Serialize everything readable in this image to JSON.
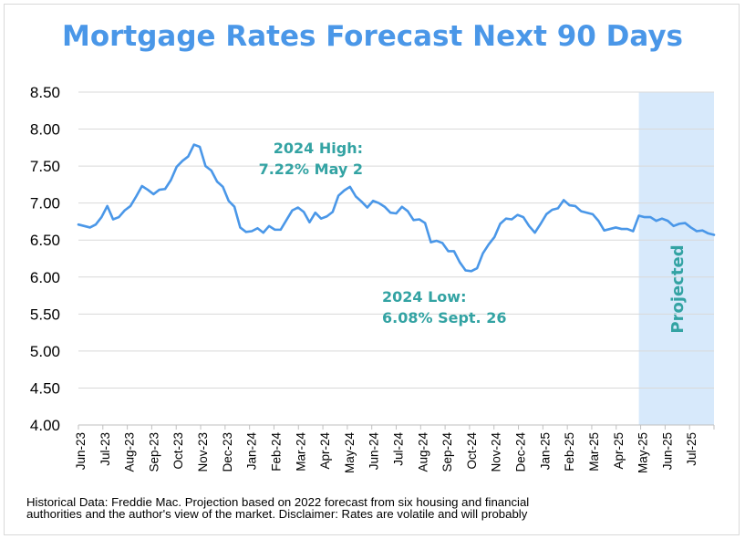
{
  "chart_data": {
    "type": "line",
    "title": "Mortgage Rates Forecast Next 90 Days",
    "xlabel": "",
    "ylabel": "",
    "ylim": [
      4.0,
      8.5
    ],
    "yticks": [
      "4.00",
      "4.50",
      "5.00",
      "5.50",
      "6.00",
      "6.50",
      "7.00",
      "7.50",
      "8.00",
      "8.50"
    ],
    "xticks": [
      "Jun-23",
      "Jul-23",
      "Aug-23",
      "Sep-23",
      "Oct-23",
      "Nov-23",
      "Dec-23",
      "Jan-24",
      "Feb-24",
      "Mar-24",
      "Apr-24",
      "May-24",
      "Jun-24",
      "Jul-24",
      "Aug-24",
      "Sep-24",
      "Oct-24",
      "Nov-24",
      "Dec-24",
      "Jan-25",
      "Feb-25",
      "Mar-25",
      "Apr-25",
      "May-25",
      "Jun-25",
      "Jul-25"
    ],
    "grid": "horizontal",
    "series": [
      {
        "color": "#4a97e8",
        "values": [
          6.71,
          6.69,
          6.67,
          6.71,
          6.81,
          6.96,
          6.78,
          6.81,
          6.9,
          6.96,
          7.09,
          7.23,
          7.18,
          7.12,
          7.18,
          7.19,
          7.31,
          7.49,
          7.57,
          7.63,
          7.79,
          7.76,
          7.5,
          7.44,
          7.29,
          7.22,
          7.03,
          6.95,
          6.67,
          6.61,
          6.62,
          6.66,
          6.6,
          6.69,
          6.64,
          6.64,
          6.77,
          6.9,
          6.94,
          6.88,
          6.74,
          6.87,
          6.79,
          6.82,
          6.88,
          7.1,
          7.17,
          7.22,
          7.09,
          7.02,
          6.94,
          7.03,
          7.0,
          6.95,
          6.87,
          6.86,
          6.95,
          6.89,
          6.77,
          6.78,
          6.73,
          6.47,
          6.49,
          6.46,
          6.35,
          6.35,
          6.2,
          6.09,
          6.08,
          6.12,
          6.32,
          6.44,
          6.54,
          6.72,
          6.79,
          6.78,
          6.84,
          6.81,
          6.69,
          6.6,
          6.72,
          6.85,
          6.91,
          6.93,
          7.04,
          6.97,
          6.96,
          6.89,
          6.87,
          6.85,
          6.76,
          6.63,
          6.65,
          6.67,
          6.65,
          6.65,
          6.62,
          6.83,
          6.81,
          6.81,
          6.76,
          6.79,
          6.76,
          6.69,
          6.72,
          6.73,
          6.67,
          6.62,
          6.63,
          6.59,
          6.57
        ]
      }
    ],
    "projection": {
      "label": "Projected",
      "start_index": 97,
      "fill": "#d7e9fb"
    },
    "annotations": [
      {
        "lines": [
          "2024 High:",
          "7.22% May 2"
        ],
        "color": "#33a3a3"
      },
      {
        "lines": [
          "2024 Low:",
          "6.08% Sept. 26"
        ],
        "color": "#33a3a3"
      }
    ]
  },
  "footnote": {
    "line1": "Historical Data: Freddie Mac. Projection based on 2022 forecast from six housing and financial",
    "line2": "authorities and the author's view of the market. Disclaimer: Rates are volatile and will probably"
  }
}
